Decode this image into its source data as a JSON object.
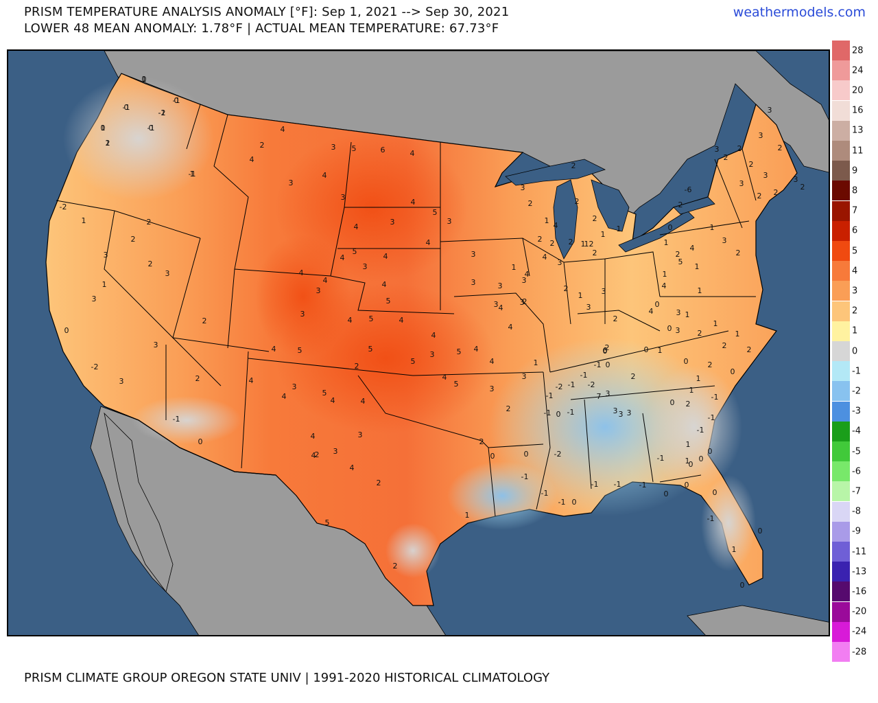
{
  "header": {
    "title_line1": "PRISM TEMPERATURE ANALYSIS ANOMALY [°F]: Sep 1, 2021 --> Sep 30, 2021",
    "title_line2": "LOWER 48 MEAN ANOMALY: 1.78°F | ACTUAL MEAN TEMPERATURE: 67.73°F",
    "brand": "weathermodels.com"
  },
  "footer": "PRISM CLIMATE GROUP OREGON STATE UNIV | 1991-2020 HISTORICAL CLIMATOLOGY",
  "colors": {
    "ocean": "#3b5f85",
    "land_outside": "#9b9b9b",
    "lake": "#3b5f85",
    "border": "#000000"
  },
  "legend": [
    {
      "label": "28",
      "color": "#e06868"
    },
    {
      "label": "24",
      "color": "#ef9a9a"
    },
    {
      "label": "20",
      "color": "#f7caca"
    },
    {
      "label": "16",
      "color": "#f1ddd7"
    },
    {
      "label": "13",
      "color": "#ccaea3"
    },
    {
      "label": "11",
      "color": "#ae8b7c"
    },
    {
      "label": "9",
      "color": "#7c5a4c"
    },
    {
      "label": "8",
      "color": "#6b0a00"
    },
    {
      "label": "7",
      "color": "#991500"
    },
    {
      "label": "6",
      "color": "#c92000"
    },
    {
      "label": "5",
      "color": "#f04a10"
    },
    {
      "label": "4",
      "color": "#f77a3a"
    },
    {
      "label": "3",
      "color": "#fa9e56"
    },
    {
      "label": "2",
      "color": "#fdc57a"
    },
    {
      "label": "1",
      "color": "#fff2a0"
    },
    {
      "label": "0",
      "color": "#d6d6d6"
    },
    {
      "label": "-1",
      "color": "#b3e8f6"
    },
    {
      "label": "-2",
      "color": "#88c2ef"
    },
    {
      "label": "-3",
      "color": "#4d90e0"
    },
    {
      "label": "-4",
      "color": "#1a9e1a"
    },
    {
      "label": "-5",
      "color": "#41c93a"
    },
    {
      "label": "-6",
      "color": "#78e86a"
    },
    {
      "label": "-7",
      "color": "#b8f5a8"
    },
    {
      "label": "-8",
      "color": "#d9d6f5"
    },
    {
      "label": "-9",
      "color": "#a99be8"
    },
    {
      "label": "-11",
      "color": "#6f5fd6"
    },
    {
      "label": "-13",
      "color": "#3a22b0"
    },
    {
      "label": "-16",
      "color": "#560a6e"
    },
    {
      "label": "-20",
      "color": "#9a0a9a"
    },
    {
      "label": "-24",
      "color": "#d81ad8"
    },
    {
      "label": "-28",
      "color": "#f27ef2"
    }
  ],
  "region_labels": [
    {
      "label": "0"
    },
    {
      "label": "-1"
    },
    {
      "label": "-1"
    },
    {
      "label": "0"
    },
    {
      "label": "-1"
    },
    {
      "label": "2"
    },
    {
      "label": "1"
    },
    {
      "label": "1"
    },
    {
      "label": "-2"
    },
    {
      "label": "1"
    },
    {
      "label": "3"
    },
    {
      "label": "3"
    },
    {
      "label": "1"
    },
    {
      "label": "0"
    },
    {
      "label": "-2"
    },
    {
      "label": "3"
    },
    {
      "label": "3"
    },
    {
      "label": "2"
    },
    {
      "label": "2"
    },
    {
      "label": "3"
    },
    {
      "label": "2"
    },
    {
      "label": "0"
    },
    {
      "label": "-1"
    },
    {
      "label": "2"
    },
    {
      "label": "2"
    },
    {
      "label": "4"
    },
    {
      "label": "2"
    },
    {
      "label": "4"
    },
    {
      "label": "3"
    },
    {
      "label": "6"
    },
    {
      "label": "4"
    },
    {
      "label": "3"
    },
    {
      "label": "5"
    },
    {
      "label": "4"
    },
    {
      "label": "3"
    },
    {
      "label": "4"
    },
    {
      "label": "3"
    },
    {
      "label": "4"
    },
    {
      "label": "5"
    },
    {
      "label": "4"
    },
    {
      "label": "3"
    },
    {
      "label": "4"
    },
    {
      "label": "3"
    },
    {
      "label": "4"
    },
    {
      "label": "5"
    },
    {
      "label": "4"
    },
    {
      "label": "4"
    },
    {
      "label": "3"
    },
    {
      "label": "3"
    },
    {
      "label": "4"
    },
    {
      "label": "5"
    },
    {
      "label": "5"
    },
    {
      "label": "4"
    },
    {
      "label": "5"
    },
    {
      "label": "4"
    },
    {
      "label": "4"
    },
    {
      "label": "5"
    },
    {
      "label": "3"
    },
    {
      "label": "5"
    },
    {
      "label": "4"
    },
    {
      "label": "4"
    },
    {
      "label": "5"
    },
    {
      "label": "4"
    },
    {
      "label": "4"
    },
    {
      "label": "4"
    },
    {
      "label": "5"
    },
    {
      "label": "4"
    },
    {
      "label": "3"
    },
    {
      "label": "4"
    },
    {
      "label": "2"
    },
    {
      "label": "4"
    },
    {
      "label": "4"
    },
    {
      "label": "5"
    },
    {
      "label": "3"
    },
    {
      "label": "2"
    },
    {
      "label": "4"
    },
    {
      "label": "3"
    },
    {
      "label": "4"
    },
    {
      "label": "5"
    },
    {
      "label": "2"
    },
    {
      "label": "2"
    },
    {
      "label": "0"
    },
    {
      "label": "-1"
    },
    {
      "label": "0"
    },
    {
      "label": "1"
    },
    {
      "label": "2"
    },
    {
      "label": "3"
    },
    {
      "label": "2"
    },
    {
      "label": "3"
    },
    {
      "label": "1"
    },
    {
      "label": "3"
    },
    {
      "label": "1"
    },
    {
      "label": "3"
    },
    {
      "label": "4"
    },
    {
      "label": "4"
    },
    {
      "label": "3"
    },
    {
      "label": "3"
    },
    {
      "label": "4"
    },
    {
      "label": "3"
    },
    {
      "label": "4"
    },
    {
      "label": "3"
    },
    {
      "label": "2"
    },
    {
      "label": "3"
    },
    {
      "label": "2"
    },
    {
      "label": "1"
    },
    {
      "label": "3"
    },
    {
      "label": "3"
    },
    {
      "label": "2"
    },
    {
      "label": "2"
    },
    {
      "label": "4"
    },
    {
      "label": "3"
    },
    {
      "label": "2"
    },
    {
      "label": "1"
    },
    {
      "label": "2"
    },
    {
      "label": "2"
    },
    {
      "label": "2"
    },
    {
      "label": "2"
    },
    {
      "label": "0"
    },
    {
      "label": "-1"
    },
    {
      "label": "0"
    },
    {
      "label": "-1"
    },
    {
      "label": "-2"
    },
    {
      "label": "-1"
    },
    {
      "label": "-2"
    },
    {
      "label": "-1"
    },
    {
      "label": "-1"
    },
    {
      "label": "0"
    },
    {
      "label": "-1"
    },
    {
      "label": "-2"
    },
    {
      "label": "-1"
    },
    {
      "label": "-1"
    },
    {
      "label": "0"
    },
    {
      "label": "-1"
    },
    {
      "label": "-1"
    },
    {
      "label": "-1"
    },
    {
      "label": "0"
    },
    {
      "label": "0"
    },
    {
      "label": "1"
    },
    {
      "label": "0"
    },
    {
      "label": "-1"
    },
    {
      "label": "0"
    },
    {
      "label": "2"
    },
    {
      "label": "3"
    },
    {
      "label": "3"
    },
    {
      "label": "2"
    },
    {
      "label": "3"
    },
    {
      "label": "2"
    },
    {
      "label": "3"
    },
    {
      "label": "2"
    },
    {
      "label": "2"
    },
    {
      "label": "2"
    },
    {
      "label": "3"
    },
    {
      "label": "2"
    },
    {
      "label": "3"
    },
    {
      "label": "2"
    },
    {
      "label": "-6"
    },
    {
      "label": "2"
    },
    {
      "label": "1"
    },
    {
      "label": "1"
    },
    {
      "label": "2"
    },
    {
      "label": "1"
    },
    {
      "label": "0"
    },
    {
      "label": "0"
    },
    {
      "label": "1"
    },
    {
      "label": "0"
    },
    {
      "label": "-1"
    },
    {
      "label": "-1"
    },
    {
      "label": "0"
    },
    {
      "label": "0"
    },
    {
      "label": "1"
    },
    {
      "label": "1"
    },
    {
      "label": "0"
    },
    {
      "label": "1"
    },
    {
      "label": "0"
    },
    {
      "label": "0"
    },
    {
      "label": "-1"
    },
    {
      "label": "1"
    },
    {
      "label": "2"
    },
    {
      "label": "1"
    },
    {
      "label": "2"
    },
    {
      "label": "1"
    },
    {
      "label": "5"
    },
    {
      "label": "4"
    },
    {
      "label": "4"
    },
    {
      "label": "3"
    },
    {
      "label": "2"
    },
    {
      "label": "-1"
    },
    {
      "label": "0"
    },
    {
      "label": "0"
    },
    {
      "label": "3"
    },
    {
      "label": "1"
    },
    {
      "label": "4"
    },
    {
      "label": "2"
    },
    {
      "label": "1"
    },
    {
      "label": "0"
    },
    {
      "label": "1"
    },
    {
      "label": "3"
    },
    {
      "label": "2"
    },
    {
      "label": "1"
    },
    {
      "label": "1"
    },
    {
      "label": "2"
    },
    {
      "label": "1"
    },
    {
      "label": "1"
    },
    {
      "label": "2"
    },
    {
      "label": "2"
    },
    {
      "label": "2"
    },
    {
      "label": "6"
    },
    {
      "label": "7"
    },
    {
      "label": "3"
    },
    {
      "label": "3"
    },
    {
      "label": "3"
    },
    {
      "label": "3"
    },
    {
      "label": "2"
    },
    {
      "label": "1"
    },
    {
      "label": "0"
    },
    {
      "label": "0"
    },
    {
      "label": "-1"
    },
    {
      "label": "-2"
    },
    {
      "label": "1"
    },
    {
      "label": "0"
    },
    {
      "label": "-1"
    }
  ]
}
